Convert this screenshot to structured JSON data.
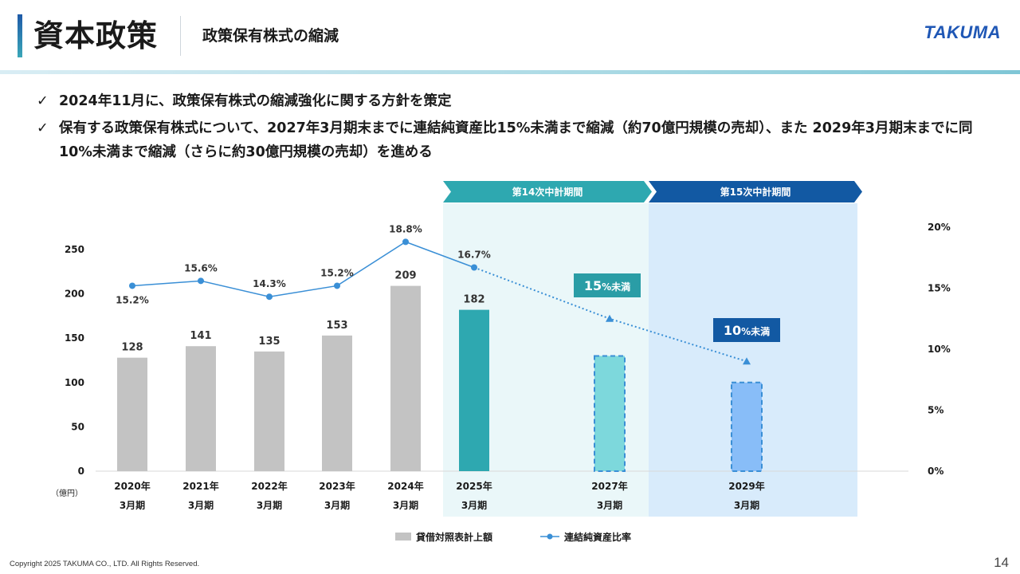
{
  "header": {
    "title": "資本政策",
    "subtitle": "政策保有株式の縮減",
    "logo": "TAKUMA"
  },
  "bullets": [
    {
      "icon": "check-icon",
      "text": "2024年11月に、政策保有株式の縮減強化に関する方針を策定"
    },
    {
      "icon": "check-icon",
      "text": "保有する政策保有株式について、2027年3月期末までに連結純資産比15%未満まで縮減（約70億円規模の売却）、また 2029年3月期末までに同10%未満まで縮減（さらに約30億円規模の売却）を進める"
    }
  ],
  "chart_data": {
    "type": "bar",
    "categories": [
      [
        "2020年",
        "3月期"
      ],
      [
        "2021年",
        "3月期"
      ],
      [
        "2022年",
        "3月期"
      ],
      [
        "2023年",
        "3月期"
      ],
      [
        "2024年",
        "3月期"
      ],
      [
        "2025年",
        "3月期"
      ],
      [
        "2027年",
        "3月期"
      ],
      [
        "2029年",
        "3月期"
      ]
    ],
    "unit_label": "（億円）",
    "left_axis": {
      "min": 0,
      "max": 250,
      "ticks": [
        "0",
        "50",
        "100",
        "150",
        "200",
        "250"
      ],
      "tick_values": [
        0,
        50,
        100,
        150,
        200,
        250
      ]
    },
    "right_axis": {
      "min": 0,
      "max": 20,
      "ticks": [
        "0%",
        "5%",
        "10%",
        "15%",
        "20%"
      ],
      "tick_values": [
        0,
        5,
        10,
        15,
        20
      ]
    },
    "bars": {
      "name": "貸借対照表計上額",
      "values": [
        128,
        141,
        135,
        153,
        209,
        182,
        130,
        100
      ],
      "labels": [
        "128",
        "141",
        "135",
        "153",
        "209",
        "182",
        "",
        ""
      ],
      "styles": [
        "actual",
        "actual",
        "actual",
        "actual",
        "actual",
        "current",
        "target",
        "target"
      ],
      "colors": {
        "actual": "#c3c3c3",
        "current": "#2ea8b0",
        "target_a": "#7dd8dc",
        "target_b": "#88bdf8",
        "target_border": "#3a8fd6"
      }
    },
    "line": {
      "name": "連結純資産比率",
      "values": [
        15.2,
        15.6,
        14.3,
        15.2,
        18.8,
        16.7,
        12.5,
        9.0
      ],
      "labels": [
        "15.2%",
        "15.6%",
        "14.3%",
        "15.2%",
        "18.8%",
        "16.7%",
        "",
        ""
      ],
      "color": "#3a8fd6",
      "dotted_from_index": 5
    },
    "target_badges": [
      {
        "index": 6,
        "text_big": "15",
        "text_small": "%未満",
        "color": "#2a9da6"
      },
      {
        "index": 7,
        "text_big": "10",
        "text_small": "%未満",
        "color": "#1259a3"
      }
    ],
    "periods": [
      {
        "label": "第14次中計期間",
        "color": "#2ea8b0",
        "fill": "#eaf7f9"
      },
      {
        "label": "第15次中計期間",
        "color": "#1259a3",
        "fill": "#d8ebfb"
      }
    ],
    "legend": {
      "position": "bottom"
    }
  },
  "footer": {
    "copyright": "Copyright  2025 TAKUMA CO., LTD.  All Rights Reserved.",
    "page": "14"
  }
}
